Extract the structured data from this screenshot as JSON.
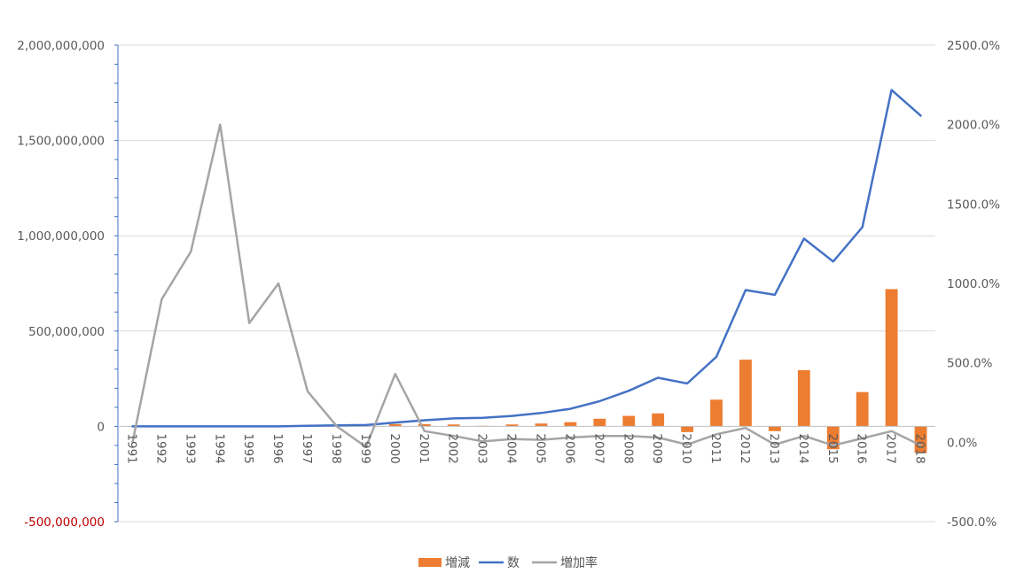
{
  "chart_data": {
    "type": "bar+line",
    "x": [
      "1991",
      "1992",
      "1993",
      "1994",
      "1995",
      "1996",
      "1997",
      "1998",
      "1999",
      "2000",
      "2001",
      "2002",
      "2003",
      "2004",
      "2005",
      "2006",
      "2007",
      "2008",
      "2009",
      "2010",
      "2011",
      "2012",
      "2013",
      "2014",
      "2015",
      "2016",
      "2017",
      "2018"
    ],
    "left_axis": {
      "ylim": [
        -500000000,
        2000000000
      ],
      "tick_labels": [
        "-500,000,000",
        "0",
        "500,000,000",
        "1,000,000,000",
        "1,500,000,000",
        "2,000,000,000"
      ],
      "tick_values": [
        -500000000,
        0,
        500000000,
        1000000000,
        1500000000,
        2000000000
      ],
      "negative_label_color": "#C00000"
    },
    "right_axis": {
      "ylim": [
        -500,
        2500
      ],
      "tick_labels": [
        "-500.0%",
        "0.0%",
        "500.0%",
        "1000.0%",
        "1500.0%",
        "2000.0%",
        "2500.0%"
      ],
      "tick_values": [
        -500,
        0,
        500,
        1000,
        1500,
        2000,
        2500
      ]
    },
    "grid": true,
    "legend_position": "bottom",
    "series": [
      {
        "name": "増減",
        "kind": "bar",
        "axis": "left",
        "color": "#ED7D31",
        "values": [
          0,
          0,
          0,
          0,
          0,
          0,
          3000000,
          2000000,
          2000000,
          12000000,
          12000000,
          10000000,
          3000000,
          10000000,
          15000000,
          22000000,
          40000000,
          55000000,
          68000000,
          -30000000,
          140000000,
          350000000,
          -25000000,
          295000000,
          -120000000,
          180000000,
          720000000,
          -140000000
        ]
      },
      {
        "name": "数",
        "kind": "line",
        "axis": "left",
        "color": "#4472C4",
        "values": [
          0,
          0,
          0,
          0,
          0,
          0,
          3000000,
          5000000,
          7000000,
          20000000,
          32000000,
          42000000,
          45000000,
          55000000,
          70000000,
          92000000,
          132000000,
          187000000,
          255000000,
          225000000,
          365000000,
          715000000,
          690000000,
          985000000,
          865000000,
          1045000000,
          1765000000,
          1630000000
        ]
      },
      {
        "name": "増加率",
        "kind": "line",
        "axis": "right",
        "color": "#A5A5A5",
        "values": [
          0,
          900,
          1200,
          2000,
          750,
          1000,
          320,
          100,
          -30,
          430,
          70,
          40,
          5,
          20,
          15,
          30,
          40,
          40,
          30,
          -15,
          50,
          90,
          -15,
          40,
          -20,
          25,
          70,
          -20
        ]
      }
    ]
  }
}
